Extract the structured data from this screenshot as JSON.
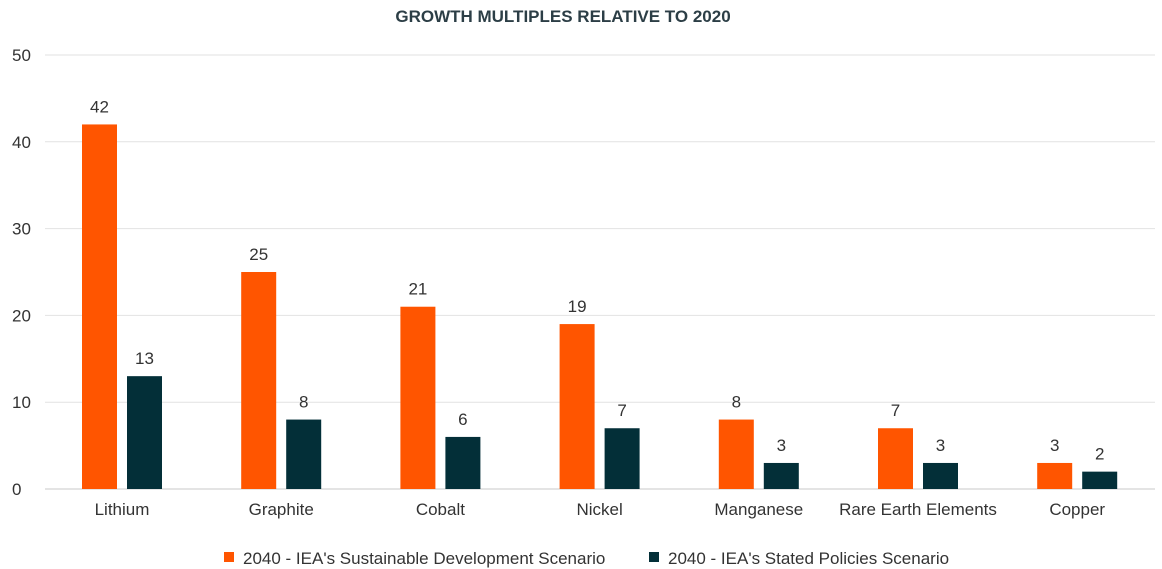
{
  "chart_data": {
    "type": "bar",
    "title": "GROWTH MULTIPLES RELATIVE TO 2020",
    "xlabel": "",
    "ylabel": "",
    "ylim": [
      0,
      50
    ],
    "yticks": [
      0,
      10,
      20,
      30,
      40,
      50
    ],
    "grid": true,
    "legend_position": "bottom",
    "categories": [
      "Lithium",
      "Graphite",
      "Cobalt",
      "Nickel",
      "Manganese",
      "Rare Earth Elements",
      "Copper"
    ],
    "series": [
      {
        "name": "2040 - IEA's Sustainable Development Scenario",
        "color": "#ff5500",
        "values": [
          42,
          25,
          21,
          19,
          8,
          7,
          3
        ]
      },
      {
        "name": "2040 - IEA's Stated Policies Scenario",
        "color": "#032f38",
        "values": [
          13,
          8,
          6,
          7,
          3,
          3,
          2
        ]
      }
    ]
  }
}
